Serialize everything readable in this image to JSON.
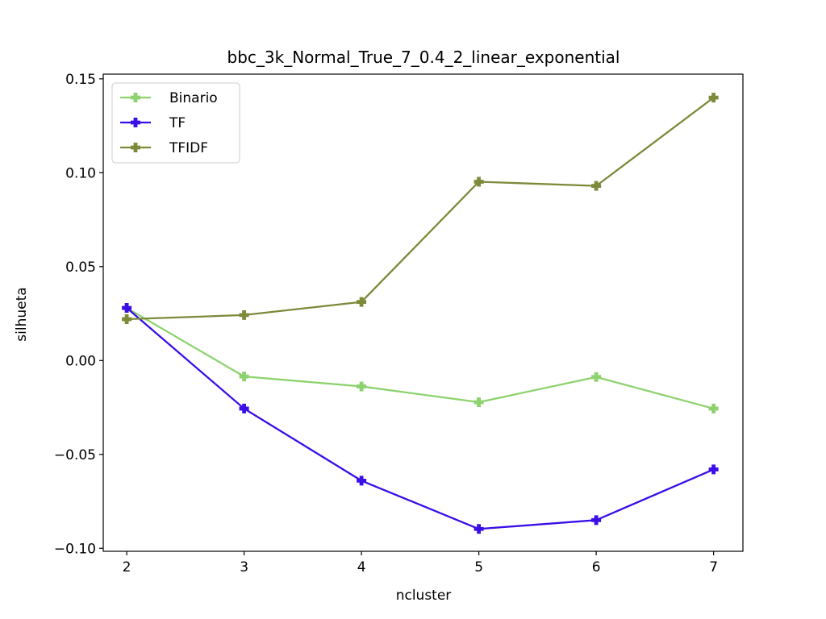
{
  "chart_data": {
    "type": "line",
    "title": "bbc_3k_Normal_True_7_0.4_2_linear_exponential",
    "xlabel": "ncluster",
    "ylabel": "silhueta",
    "x": [
      2,
      3,
      4,
      5,
      6,
      7
    ],
    "xlim": [
      1.8,
      7.25
    ],
    "ylim": [
      -0.1016,
      0.1525
    ],
    "x_ticks": [
      2,
      3,
      4,
      5,
      6,
      7
    ],
    "y_ticks": [
      -0.1,
      -0.05,
      0.0,
      0.05,
      0.1,
      0.15
    ],
    "y_tick_labels": [
      "−0.10",
      "−0.05",
      "0.00",
      "0.05",
      "0.10",
      "0.15"
    ],
    "grid": false,
    "legend_position": "top-left",
    "marker": "plus-filled",
    "series": [
      {
        "name": "Binario",
        "color": "#8dd26e",
        "values": [
          0.028,
          -0.0085,
          -0.0138,
          -0.0222,
          -0.0088,
          -0.0256
        ]
      },
      {
        "name": "TF",
        "color": "#3a0ee8",
        "values": [
          0.028,
          -0.0256,
          -0.064,
          -0.0897,
          -0.085,
          -0.058
        ]
      },
      {
        "name": "TFIDF",
        "color": "#7c8a3a",
        "values": [
          0.022,
          0.0242,
          0.0312,
          0.0952,
          0.093,
          0.14
        ]
      }
    ]
  }
}
